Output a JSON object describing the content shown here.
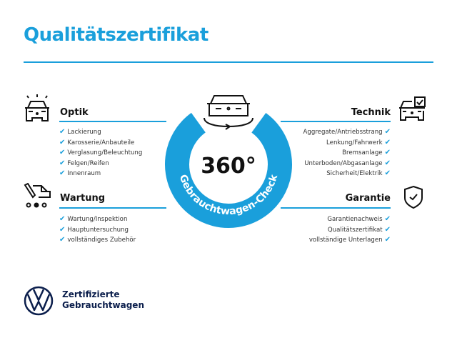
{
  "title": "Qualitätszertifikat",
  "accent_color": "#1a9fdb",
  "center": {
    "number": "360°",
    "ring_text": "Gebrauchtwagen-Check",
    "icon": "car-rotate-icon"
  },
  "sections": {
    "optik": {
      "heading": "Optik",
      "icon": "car-lights-icon",
      "items": [
        "Lackierung",
        "Karosserie/Anbauteile",
        "Verglasung/Beleuchtung",
        "Felgen/Reifen",
        "Innenraum"
      ]
    },
    "wartung": {
      "heading": "Wartung",
      "icon": "service-car-icon",
      "items": [
        "Wartung/Inspektion",
        "Hauptuntersuchung",
        "vollständiges Zubehör"
      ]
    },
    "technik": {
      "heading": "Technik",
      "icon": "car-checkbox-icon",
      "items": [
        "Aggregate/Antriebsstrang",
        "Lenkung/Fahrwerk",
        "Bremsanlage",
        "Unterboden/Abgasanlage",
        "Sicherheit/Elektrik"
      ]
    },
    "garantie": {
      "heading": "Garantie",
      "icon": "shield-check-icon",
      "items": [
        "Garantienachweis",
        "Qualitätszertifikat",
        "vollständige Unterlagen"
      ]
    }
  },
  "check_mark": "✔",
  "brand": {
    "line1": "Zertifizierte",
    "line2": "Gebrauchtwagen",
    "logo": "vw-logo"
  }
}
